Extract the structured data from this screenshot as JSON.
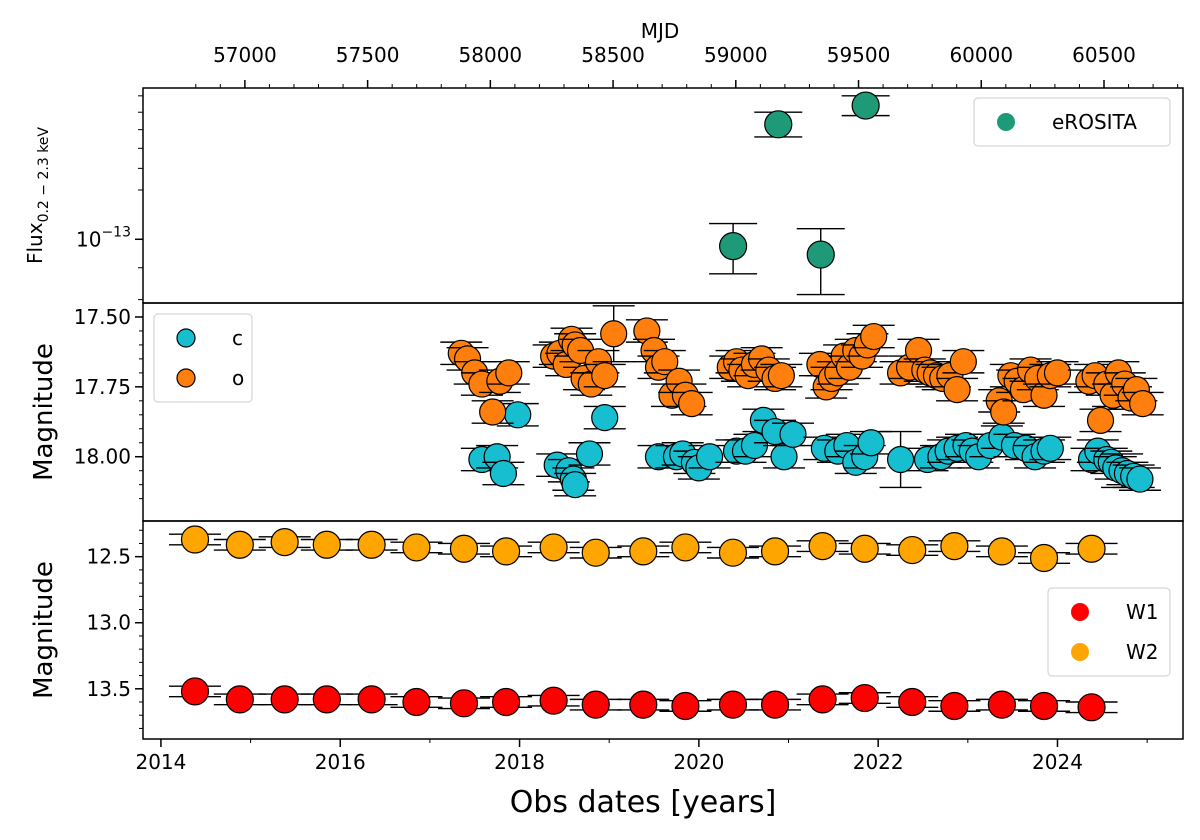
{
  "chart_data": [
    {
      "type": "scatter",
      "panel": "erosita",
      "ylabel_main": "Flux",
      "ylabel_sub": "0.2 − 2.3 keV",
      "yscale": "log",
      "ylim": [
        7.9e-14,
        1.75e-13
      ],
      "ytick_label_base": "10",
      "ytick_label_exp": "−13",
      "top_xlabel": "MJD",
      "top_xticks": [
        "57000",
        "57500",
        "58000",
        "58500",
        "59000",
        "59500",
        "60000",
        "60500"
      ],
      "legend_position": "upper-right",
      "series": [
        {
          "name": "eROSITA",
          "color": "#1f9a78",
          "x_mjd": [
            58989,
            59173,
            59346,
            59529
          ],
          "y": [
            9.75e-14,
            1.53e-13,
            9.45e-14,
            1.64e-13
          ],
          "yerr_low": [
            8.8e-14,
            1.46e-13,
            8.15e-14,
            1.58e-13
          ],
          "yerr_high": [
            1.06e-13,
            1.6e-13,
            1.04e-13,
            1.7e-13
          ]
        }
      ]
    },
    {
      "type": "scatter",
      "panel": "atlas",
      "ylabel": "Magnitude",
      "inverted": true,
      "ylim": [
        18.23,
        17.45
      ],
      "yticks": [
        "17.50",
        "17.75",
        "18.00"
      ],
      "ytick_values": [
        17.5,
        17.75,
        18.0
      ],
      "legend_position": "upper-left",
      "series": [
        {
          "name": "c",
          "color": "#17becf",
          "x": [
            2017.58,
            2017.75,
            2017.82,
            2017.98,
            2018.42,
            2018.55,
            2018.6,
            2018.62,
            2018.78,
            2018.95,
            2019.55,
            2019.75,
            2019.82,
            2019.95,
            2020.0,
            2020.12,
            2020.42,
            2020.52,
            2020.62,
            2020.72,
            2020.85,
            2020.95,
            2021.05,
            2021.4,
            2021.55,
            2021.65,
            2021.75,
            2021.85,
            2021.92,
            2022.25,
            2022.55,
            2022.7,
            2022.78,
            2022.88,
            2022.98,
            2023.05,
            2023.12,
            2023.25,
            2023.38,
            2023.52,
            2023.65,
            2023.75,
            2023.85,
            2023.92,
            2024.38,
            2024.45,
            2024.55,
            2024.6,
            2024.65,
            2024.72,
            2024.78,
            2024.85,
            2024.92
          ],
          "y": [
            18.01,
            18.0,
            18.06,
            17.85,
            18.03,
            18.05,
            18.08,
            18.1,
            17.99,
            17.86,
            18.0,
            18.0,
            17.99,
            18.02,
            18.04,
            18.0,
            17.98,
            17.98,
            17.96,
            17.87,
            17.91,
            18.0,
            17.92,
            17.97,
            17.98,
            17.96,
            18.02,
            18.0,
            17.95,
            18.01,
            18.01,
            18.0,
            17.98,
            17.97,
            17.96,
            17.98,
            18.0,
            17.96,
            17.93,
            17.96,
            17.97,
            18.0,
            17.98,
            17.97,
            18.01,
            17.98,
            18.01,
            18.02,
            18.04,
            18.05,
            18.06,
            18.07,
            18.08
          ],
          "yerr": [
            0.04,
            0.04,
            0.04,
            0.04,
            0.04,
            0.04,
            0.04,
            0.04,
            0.04,
            0.04,
            0.04,
            0.04,
            0.04,
            0.04,
            0.04,
            0.04,
            0.04,
            0.04,
            0.04,
            0.04,
            0.04,
            0.04,
            0.04,
            0.04,
            0.04,
            0.04,
            0.04,
            0.04,
            0.04,
            0.1,
            0.04,
            0.04,
            0.04,
            0.04,
            0.04,
            0.04,
            0.04,
            0.04,
            0.04,
            0.04,
            0.04,
            0.04,
            0.04,
            0.04,
            0.04,
            0.04,
            0.04,
            0.04,
            0.04,
            0.06,
            0.04,
            0.04,
            0.04
          ]
        },
        {
          "name": "o",
          "color": "#ff7f0e",
          "x": [
            2017.35,
            2017.42,
            2017.5,
            2017.58,
            2017.7,
            2017.78,
            2017.88,
            2018.38,
            2018.45,
            2018.52,
            2018.58,
            2018.62,
            2018.68,
            2018.72,
            2018.8,
            2018.88,
            2018.95,
            2019.05,
            2019.42,
            2019.5,
            2019.55,
            2019.62,
            2019.7,
            2019.78,
            2019.85,
            2019.92,
            2020.35,
            2020.42,
            2020.48,
            2020.55,
            2020.62,
            2020.7,
            2020.78,
            2020.85,
            2020.92,
            2021.35,
            2021.42,
            2021.48,
            2021.55,
            2021.62,
            2021.68,
            2021.75,
            2021.82,
            2021.88,
            2021.95,
            2022.25,
            2022.35,
            2022.45,
            2022.52,
            2022.58,
            2022.65,
            2022.72,
            2022.8,
            2022.88,
            2022.95,
            2023.35,
            2023.4,
            2023.48,
            2023.55,
            2023.62,
            2023.7,
            2023.78,
            2023.85,
            2023.92,
            2024.0,
            2024.35,
            2024.42,
            2024.48,
            2024.55,
            2024.62,
            2024.68,
            2024.75,
            2024.82,
            2024.88,
            2024.95
          ],
          "y": [
            17.63,
            17.65,
            17.7,
            17.74,
            17.84,
            17.73,
            17.7,
            17.64,
            17.63,
            17.67,
            17.58,
            17.6,
            17.62,
            17.72,
            17.74,
            17.66,
            17.71,
            17.56,
            17.55,
            17.62,
            17.68,
            17.66,
            17.78,
            17.73,
            17.78,
            17.81,
            17.68,
            17.66,
            17.69,
            17.71,
            17.67,
            17.65,
            17.69,
            17.72,
            17.71,
            17.67,
            17.75,
            17.72,
            17.7,
            17.64,
            17.68,
            17.62,
            17.64,
            17.6,
            17.57,
            17.7,
            17.68,
            17.62,
            17.69,
            17.7,
            17.71,
            17.72,
            17.71,
            17.76,
            17.66,
            17.8,
            17.84,
            17.71,
            17.73,
            17.76,
            17.69,
            17.72,
            17.78,
            17.71,
            17.7,
            17.73,
            17.71,
            17.87,
            17.74,
            17.78,
            17.7,
            17.74,
            17.79,
            17.76,
            17.81
          ],
          "yerr": [
            0.04,
            0.04,
            0.04,
            0.04,
            0.04,
            0.04,
            0.04,
            0.04,
            0.04,
            0.04,
            0.04,
            0.04,
            0.04,
            0.04,
            0.04,
            0.04,
            0.04,
            0.1,
            0.04,
            0.04,
            0.04,
            0.04,
            0.04,
            0.04,
            0.04,
            0.04,
            0.04,
            0.04,
            0.04,
            0.04,
            0.04,
            0.04,
            0.04,
            0.04,
            0.04,
            0.04,
            0.04,
            0.04,
            0.04,
            0.04,
            0.04,
            0.04,
            0.04,
            0.04,
            0.04,
            0.04,
            0.04,
            0.04,
            0.04,
            0.04,
            0.04,
            0.04,
            0.04,
            0.04,
            0.04,
            0.04,
            0.04,
            0.04,
            0.04,
            0.04,
            0.04,
            0.04,
            0.04,
            0.04,
            0.04,
            0.04,
            0.04,
            0.04,
            0.04,
            0.04,
            0.04,
            0.04,
            0.04,
            0.04,
            0.04
          ]
        }
      ]
    },
    {
      "type": "scatter",
      "panel": "wise",
      "ylabel": "Magnitude",
      "inverted": true,
      "ylim": [
        13.88,
        12.23
      ],
      "yticks": [
        "12.5",
        "13.0",
        "13.5"
      ],
      "ytick_values": [
        12.5,
        13.0,
        13.5
      ],
      "xlabel": "Obs dates [years]",
      "xlim": [
        2013.8,
        2025.4
      ],
      "xticks": [
        "2014",
        "2016",
        "2018",
        "2020",
        "2022",
        "2024"
      ],
      "xtick_values": [
        2014,
        2016,
        2018,
        2020,
        2022,
        2024
      ],
      "legend_position": "center-right",
      "series": [
        {
          "name": "W1",
          "color": "#ff0000",
          "x": [
            2014.38,
            2014.88,
            2015.38,
            2015.85,
            2016.35,
            2016.85,
            2017.38,
            2017.85,
            2018.38,
            2018.85,
            2019.38,
            2019.85,
            2020.38,
            2020.85,
            2021.38,
            2021.85,
            2022.38,
            2022.85,
            2023.38,
            2023.85,
            2024.38
          ],
          "y": [
            13.52,
            13.58,
            13.58,
            13.58,
            13.58,
            13.6,
            13.61,
            13.6,
            13.59,
            13.62,
            13.62,
            13.63,
            13.62,
            13.62,
            13.58,
            13.57,
            13.6,
            13.63,
            13.62,
            13.63,
            13.64
          ],
          "yerr": [
            0.04,
            0.04,
            0.04,
            0.04,
            0.04,
            0.04,
            0.04,
            0.04,
            0.04,
            0.04,
            0.04,
            0.04,
            0.04,
            0.04,
            0.04,
            0.04,
            0.04,
            0.04,
            0.04,
            0.04,
            0.04
          ]
        },
        {
          "name": "W2",
          "color": "#ffa500",
          "x": [
            2014.38,
            2014.88,
            2015.38,
            2015.85,
            2016.35,
            2016.85,
            2017.38,
            2017.85,
            2018.38,
            2018.85,
            2019.38,
            2019.85,
            2020.38,
            2020.85,
            2021.38,
            2021.85,
            2022.38,
            2022.85,
            2023.38,
            2023.85,
            2024.38
          ],
          "y": [
            12.37,
            12.41,
            12.39,
            12.41,
            12.41,
            12.43,
            12.44,
            12.46,
            12.43,
            12.47,
            12.46,
            12.43,
            12.47,
            12.46,
            12.42,
            12.44,
            12.45,
            12.42,
            12.46,
            12.51,
            12.44
          ],
          "yerr": [
            0.04,
            0.04,
            0.04,
            0.04,
            0.04,
            0.04,
            0.04,
            0.04,
            0.04,
            0.04,
            0.04,
            0.04,
            0.04,
            0.04,
            0.04,
            0.04,
            0.04,
            0.04,
            0.04,
            0.04,
            0.04
          ]
        }
      ]
    }
  ]
}
